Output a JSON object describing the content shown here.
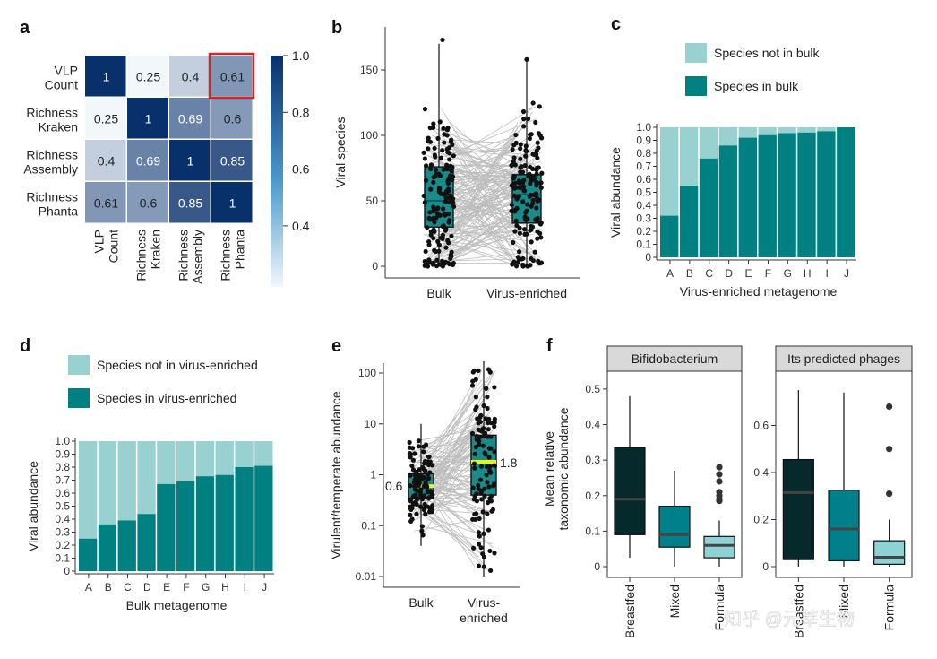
{
  "chart_data": [
    {
      "panel": "a",
      "type": "heatmap",
      "labels": [
        "VLP Count",
        "Richness Kraken",
        "Richness Assembly",
        "Richness Phanta"
      ],
      "matrix": [
        [
          1,
          0.25,
          0.4,
          0.61
        ],
        [
          0.25,
          1,
          0.69,
          0.6
        ],
        [
          0.4,
          0.69,
          1,
          0.85
        ],
        [
          0.61,
          0.6,
          0.85,
          1
        ]
      ],
      "display": [
        [
          "1",
          "0.25",
          "0.4",
          "0.61"
        ],
        [
          "0.25",
          "1",
          "0.69",
          "0.6"
        ],
        [
          "0.4",
          "0.69",
          "1",
          "0.85"
        ],
        [
          "0.61",
          "0.6",
          "0.85",
          "1"
        ]
      ],
      "highlight": {
        "row": 0,
        "col": 3,
        "color": "#d62728"
      },
      "colorbar": {
        "range": [
          0.25,
          1.0
        ],
        "ticks": [
          "1.0",
          "0.8",
          "0.6",
          "0.4"
        ]
      }
    },
    {
      "panel": "b",
      "type": "scatter",
      "title": "",
      "ylabel": "Viral species",
      "categories": [
        "Bulk",
        "Virus-enriched"
      ],
      "ylim": [
        0,
        175
      ],
      "yticks": [
        "0",
        "50",
        "100",
        "150"
      ],
      "box": [
        {
          "q1": 30,
          "median": 50,
          "q3": 76,
          "min": 0,
          "max": 170
        },
        {
          "q1": 33,
          "median": 55,
          "q3": 70,
          "min": 0,
          "max": 158
        }
      ]
    },
    {
      "panel": "c",
      "type": "bar",
      "xlabel": "Virus-enriched metagenome",
      "ylabel": "Viral abundance",
      "categories": [
        "A",
        "B",
        "C",
        "D",
        "E",
        "F",
        "G",
        "H",
        "I",
        "J"
      ],
      "series": [
        {
          "name": "Species in bulk",
          "color": "#008080",
          "values": [
            0.32,
            0.55,
            0.76,
            0.86,
            0.92,
            0.94,
            0.955,
            0.96,
            0.97,
            1.0
          ]
        },
        {
          "name": "Species not in bulk",
          "color": "#99d1d1",
          "values": [
            0.68,
            0.45,
            0.24,
            0.14,
            0.08,
            0.06,
            0.045,
            0.04,
            0.03,
            0.0
          ]
        }
      ],
      "yticks": [
        "0",
        "0.1",
        "0.2",
        "0.3",
        "0.4",
        "0.5",
        "0.6",
        "0.7",
        "0.8",
        "0.9",
        "1.0"
      ],
      "legend": [
        "Species not in bulk",
        "Species in bulk"
      ]
    },
    {
      "panel": "d",
      "type": "bar",
      "xlabel": "Bulk metagenome",
      "ylabel": "Viral abundance",
      "categories": [
        "A",
        "B",
        "C",
        "D",
        "E",
        "F",
        "G",
        "H",
        "I",
        "J"
      ],
      "series": [
        {
          "name": "Species in virus-enriched",
          "color": "#008080",
          "values": [
            0.25,
            0.36,
            0.39,
            0.44,
            0.67,
            0.69,
            0.73,
            0.74,
            0.8,
            0.81
          ]
        },
        {
          "name": "Species not in virus-enriched",
          "color": "#99d1d1",
          "values": [
            0.75,
            0.64,
            0.61,
            0.56,
            0.33,
            0.31,
            0.27,
            0.26,
            0.2,
            0.19
          ]
        }
      ],
      "yticks": [
        "0",
        "0.1",
        "0.2",
        "0.3",
        "0.4",
        "0.5",
        "0.6",
        "0.7",
        "0.8",
        "0.9",
        "1.0"
      ],
      "legend": [
        "Species not in virus-enriched",
        "Species in virus-enriched"
      ]
    },
    {
      "panel": "e",
      "type": "scatter",
      "ylabel": "Virulent/temperate abundance",
      "categories": [
        "Bulk",
        "Virus-enriched"
      ],
      "scale": "log",
      "ylim": [
        0.008,
        200
      ],
      "yticks": [
        "0.01",
        "0.1",
        "1",
        "10",
        "100"
      ],
      "box": [
        {
          "q1": 0.35,
          "median": 0.6,
          "q3": 1.05,
          "min": 0.04,
          "max": 10
        },
        {
          "q1": 0.4,
          "median": 1.8,
          "q3": 6,
          "min": 0.01,
          "max": 170
        }
      ],
      "median_labels": [
        "0.6",
        "1.8"
      ]
    },
    {
      "panel": "f",
      "type": "bar",
      "ylabel": "Mean relative taxonomic abundance",
      "categories": [
        "Breastfed",
        "Mixed",
        "Formula"
      ],
      "facets": [
        {
          "title": "Bifidobacterium",
          "yticks": [
            "0",
            "0.1",
            "0.2",
            "0.3",
            "0.4",
            "0.5"
          ],
          "ylim": [
            0,
            0.53
          ],
          "boxes": [
            {
              "color": "#06292c",
              "min": 0.025,
              "q1": 0.09,
              "median": 0.19,
              "q3": 0.335,
              "max": 0.48,
              "outliers": []
            },
            {
              "color": "#00808a",
              "min": 0.0,
              "q1": 0.055,
              "median": 0.09,
              "q3": 0.17,
              "max": 0.27,
              "outliers": []
            },
            {
              "color": "#8fd2d6",
              "min": 0.0,
              "q1": 0.025,
              "median": 0.06,
              "q3": 0.085,
              "max": 0.13,
              "outliers": [
                0.185,
                0.19,
                0.2,
                0.21,
                0.24,
                0.26,
                0.28
              ]
            }
          ]
        },
        {
          "title": "Its predicted phages",
          "yticks": [
            "0",
            "0.2",
            "0.4",
            "0.6"
          ],
          "ylim": [
            0,
            0.8
          ],
          "boxes": [
            {
              "color": "#06292c",
              "min": 0.0,
              "q1": 0.03,
              "median": 0.315,
              "q3": 0.455,
              "max": 0.75,
              "outliers": []
            },
            {
              "color": "#00808a",
              "min": 0.0,
              "q1": 0.025,
              "median": 0.16,
              "q3": 0.325,
              "max": 0.74,
              "outliers": []
            },
            {
              "color": "#8fd2d6",
              "min": 0.0,
              "q1": 0.01,
              "median": 0.04,
              "q3": 0.11,
              "max": 0.2,
              "outliers": [
                0.31,
                0.5,
                0.68
              ]
            }
          ]
        }
      ]
    }
  ],
  "panels": {
    "a": "a",
    "b": "b",
    "c": "c",
    "d": "d",
    "e": "e",
    "f": "f"
  },
  "watermark": "知乎 @元莘生物"
}
